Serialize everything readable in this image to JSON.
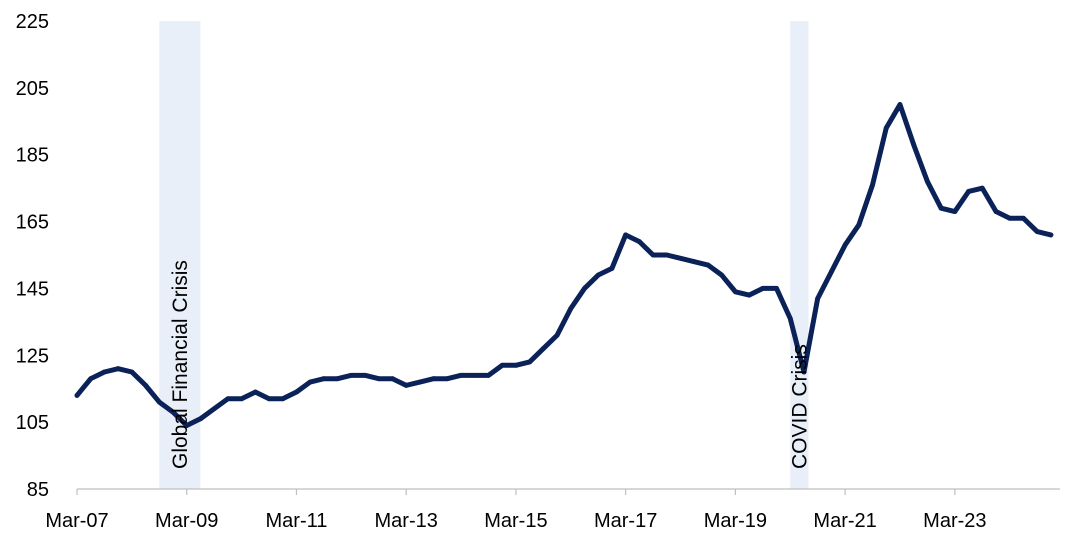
{
  "chart_data": {
    "type": "line",
    "title": "",
    "xlabel": "",
    "ylabel": "",
    "ylim": [
      85,
      225
    ],
    "y_ticks": [
      85,
      105,
      125,
      145,
      165,
      185,
      205,
      225
    ],
    "x_tick_labels": [
      "Mar-07",
      "Mar-09",
      "Mar-11",
      "Mar-13",
      "Mar-15",
      "Mar-17",
      "Mar-19",
      "Mar-21",
      "Mar-23"
    ],
    "x_tick_dates": [
      "2007-03",
      "2009-03",
      "2011-03",
      "2013-03",
      "2015-03",
      "2017-03",
      "2019-03",
      "2021-03",
      "2023-03"
    ],
    "x_range": [
      "2007-03",
      "2025-02"
    ],
    "grid": false,
    "legend": "none",
    "line_color": "#0b2259",
    "shade_color": "#e9eff8",
    "shaded_periods": [
      {
        "label": "Global Financial Crisis",
        "start": "2008-09",
        "end": "2009-06"
      },
      {
        "label": "COVID Crisis",
        "start": "2020-03",
        "end": "2020-07"
      }
    ],
    "series": [
      {
        "x": [
          "2007-03",
          "2007-06",
          "2007-09",
          "2007-12",
          "2008-03",
          "2008-06",
          "2008-09",
          "2008-12",
          "2009-03",
          "2009-06",
          "2009-09",
          "2009-12",
          "2010-03",
          "2010-06",
          "2010-09",
          "2010-12",
          "2011-03",
          "2011-06",
          "2011-09",
          "2011-12",
          "2012-03",
          "2012-06",
          "2012-09",
          "2012-12",
          "2013-03",
          "2013-06",
          "2013-09",
          "2013-12",
          "2014-03",
          "2014-06",
          "2014-09",
          "2014-12",
          "2015-03",
          "2015-06",
          "2015-09",
          "2015-12",
          "2016-03",
          "2016-06",
          "2016-09",
          "2016-12",
          "2017-03",
          "2017-06",
          "2017-09",
          "2017-12",
          "2018-03",
          "2018-06",
          "2018-09",
          "2018-12",
          "2019-03",
          "2019-06",
          "2019-09",
          "2019-12",
          "2020-03",
          "2020-06",
          "2020-09",
          "2020-12",
          "2021-03",
          "2021-06",
          "2021-09",
          "2021-12",
          "2022-03",
          "2022-06",
          "2022-09",
          "2022-12",
          "2023-03",
          "2023-06",
          "2023-09",
          "2023-12",
          "2024-03",
          "2024-06",
          "2024-09",
          "2024-12"
        ],
        "values": [
          113,
          118,
          120,
          121,
          120,
          116,
          111,
          108,
          104,
          106,
          109,
          112,
          112,
          114,
          112,
          112,
          114,
          117,
          118,
          118,
          119,
          119,
          118,
          118,
          116,
          117,
          118,
          118,
          119,
          119,
          119,
          122,
          122,
          123,
          127,
          131,
          139,
          145,
          149,
          151,
          161,
          159,
          155,
          155,
          154,
          153,
          152,
          149,
          144,
          143,
          145,
          145,
          136,
          120,
          142,
          150,
          158,
          164,
          176,
          193,
          200,
          188,
          177,
          169,
          168,
          174,
          175,
          168,
          166,
          166,
          162,
          161
        ]
      }
    ]
  }
}
